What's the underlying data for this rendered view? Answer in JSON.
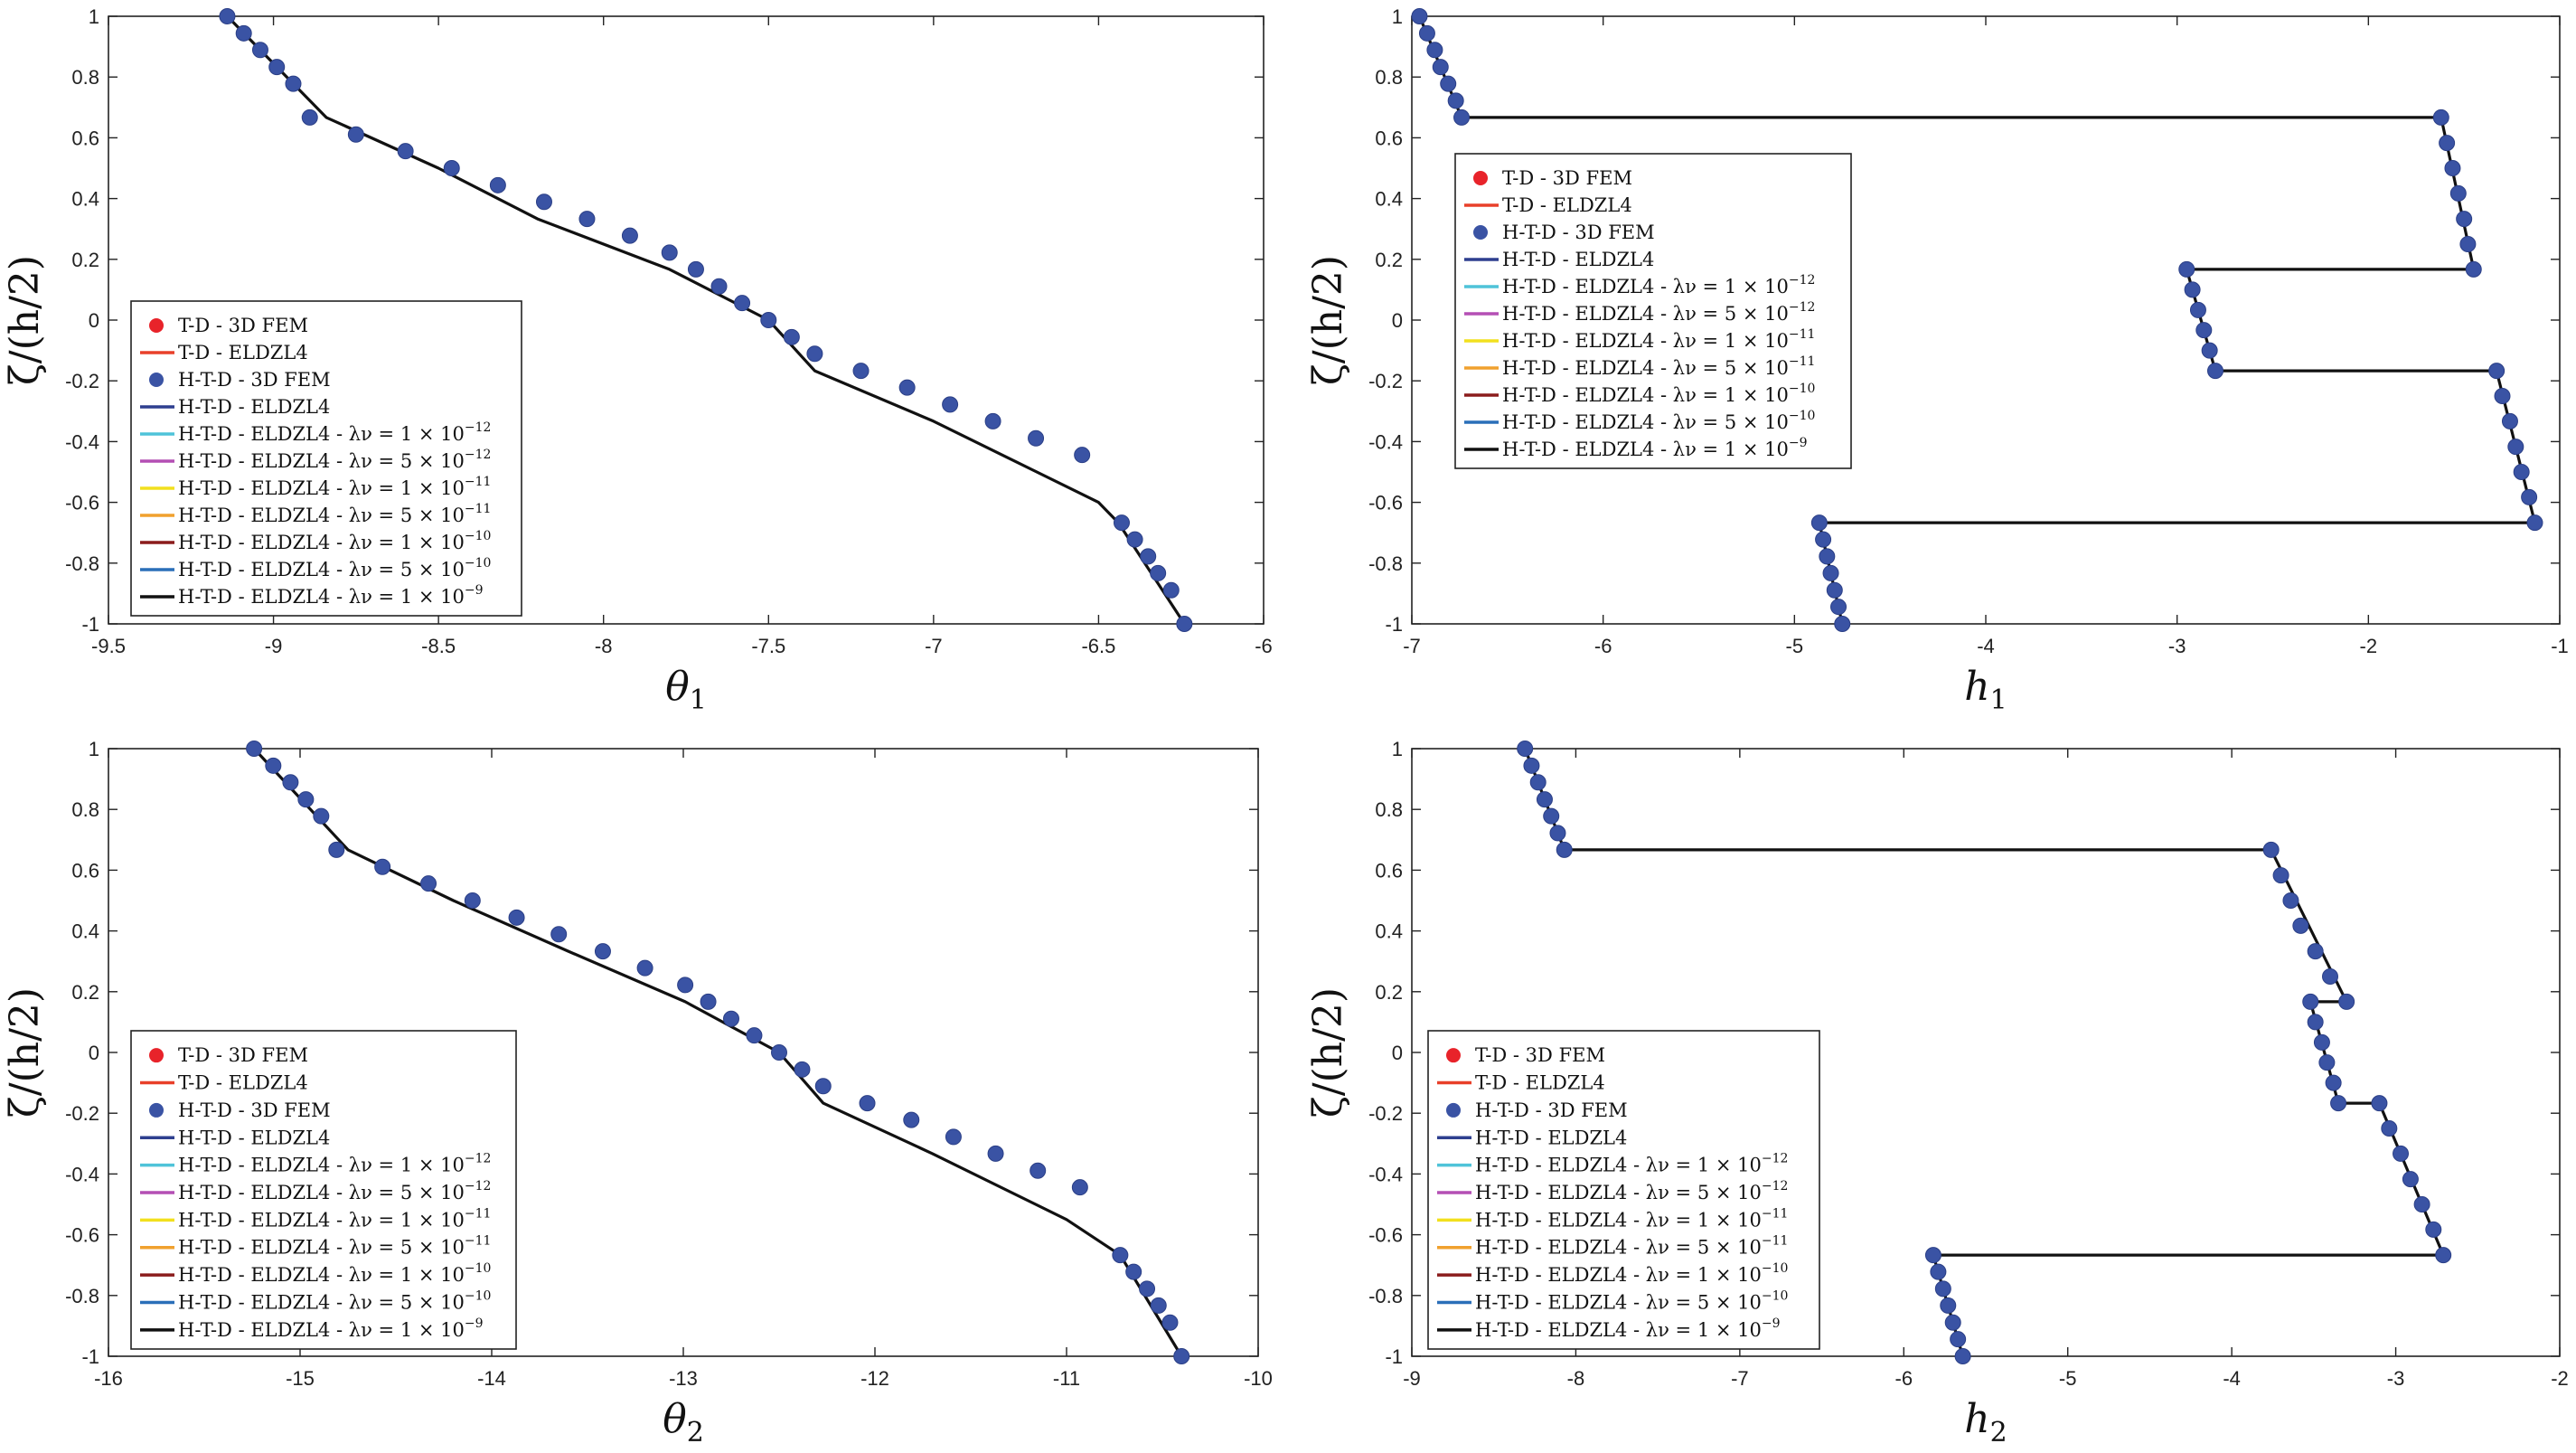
{
  "chart_data": [
    {
      "type": "line",
      "id": "theta1",
      "xlabel": "θ",
      "xlabel_sub": "1",
      "ylabel": "ζ/(h/2)",
      "xlim": [
        -9.5,
        -6
      ],
      "ylim": [
        -1,
        1
      ],
      "xticks": [
        -9.5,
        -9,
        -8.5,
        -8,
        -7.5,
        -7,
        -6.5,
        -6
      ],
      "xtick_labels": [
        "-9.5",
        "-9",
        "-8.5",
        "-8",
        "-7.5",
        "-7",
        "-6.5",
        "-6"
      ],
      "yticks": [
        -1,
        -0.8,
        -0.6,
        -0.4,
        -0.2,
        0,
        0.2,
        0.4,
        0.6,
        0.8,
        1
      ],
      "ytick_labels": [
        "-1",
        "-0.8",
        "-0.6",
        "-0.4",
        "-0.2",
        "0",
        "0.2",
        "0.4",
        "0.6",
        "0.8",
        "1"
      ],
      "legend_position": "bottom-left",
      "series": [
        {
          "name": "H-T-D - ELDZL4",
          "role": "line",
          "color": "#111111",
          "x": [
            -9.14,
            -8.84,
            -8.5,
            -8.2,
            -7.8,
            -7.5,
            -7.36,
            -7.0,
            -6.5,
            -6.44,
            -6.24
          ],
          "y": [
            1.0,
            0.667,
            0.5,
            0.333,
            0.167,
            0.0,
            -0.167,
            -0.333,
            -0.6,
            -0.667,
            -1.0
          ]
        },
        {
          "name": "H-T-D - 3D FEM",
          "role": "points",
          "color": "#3a53a4",
          "x": [
            -9.14,
            -9.09,
            -9.04,
            -8.99,
            -8.94,
            -8.89,
            -8.75,
            -8.6,
            -8.46,
            -8.32,
            -8.18,
            -8.05,
            -7.92,
            -7.8,
            -7.72,
            -7.65,
            -7.58,
            -7.5,
            -7.43,
            -7.36,
            -7.22,
            -7.08,
            -6.95,
            -6.82,
            -6.69,
            -6.55,
            -6.43,
            -6.39,
            -6.35,
            -6.32,
            -6.28,
            -6.24
          ],
          "y": [
            1.0,
            0.944,
            0.889,
            0.833,
            0.778,
            0.667,
            0.611,
            0.556,
            0.5,
            0.444,
            0.389,
            0.333,
            0.278,
            0.222,
            0.167,
            0.111,
            0.056,
            0.0,
            -0.056,
            -0.111,
            -0.167,
            -0.222,
            -0.278,
            -0.333,
            -0.389,
            -0.444,
            -0.667,
            -0.722,
            -0.778,
            -0.833,
            -0.889,
            -1.0
          ]
        }
      ]
    },
    {
      "type": "line",
      "id": "h1",
      "xlabel": "h",
      "xlabel_sub": "1",
      "ylabel": "ζ/(h/2)",
      "xlim": [
        -7,
        -1
      ],
      "ylim": [
        -1,
        1
      ],
      "xticks": [
        -7,
        -6,
        -5,
        -4,
        -3,
        -2,
        -1
      ],
      "xtick_labels": [
        "-7",
        "-6",
        "-5",
        "-4",
        "-3",
        "-2",
        "-1"
      ],
      "yticks": [
        -1,
        -0.8,
        -0.6,
        -0.4,
        -0.2,
        0,
        0.2,
        0.4,
        0.6,
        0.8,
        1
      ],
      "ytick_labels": [
        "-1",
        "-0.8",
        "-0.6",
        "-0.4",
        "-0.2",
        "0",
        "0.2",
        "0.4",
        "0.6",
        "0.8",
        "1"
      ],
      "legend_position": "top-left",
      "series": [
        {
          "name": "H-T-D - ELDZL4",
          "role": "line",
          "color": "#111111",
          "x": [
            -6.96,
            -6.74,
            -1.62,
            -1.45,
            -2.95,
            -2.8,
            -1.33,
            -1.13,
            -4.87,
            -4.75
          ],
          "y": [
            1.0,
            0.667,
            0.667,
            0.167,
            0.167,
            -0.167,
            -0.167,
            -0.667,
            -0.667,
            -1.0
          ]
        },
        {
          "name": "H-T-D - 3D FEM",
          "role": "points",
          "color": "#3a53a4",
          "x": [
            -6.96,
            -6.92,
            -6.88,
            -6.85,
            -6.81,
            -6.77,
            -6.74,
            -1.62,
            -1.59,
            -1.56,
            -1.53,
            -1.5,
            -1.48,
            -1.45,
            -2.95,
            -2.92,
            -2.89,
            -2.86,
            -2.83,
            -2.8,
            -1.33,
            -1.3,
            -1.26,
            -1.23,
            -1.2,
            -1.16,
            -1.13,
            -4.87,
            -4.85,
            -4.83,
            -4.81,
            -4.79,
            -4.77,
            -4.75
          ],
          "y": [
            1.0,
            0.944,
            0.889,
            0.833,
            0.778,
            0.722,
            0.667,
            0.667,
            0.583,
            0.5,
            0.417,
            0.333,
            0.25,
            0.167,
            0.167,
            0.1,
            0.033,
            -0.033,
            -0.1,
            -0.167,
            -0.167,
            -0.25,
            -0.333,
            -0.417,
            -0.5,
            -0.583,
            -0.667,
            -0.667,
            -0.722,
            -0.778,
            -0.833,
            -0.889,
            -0.944,
            -1.0
          ]
        }
      ]
    },
    {
      "type": "line",
      "id": "theta2",
      "xlabel": "θ",
      "xlabel_sub": "2",
      "ylabel": "ζ/(h/2)",
      "xlim": [
        -16,
        -10
      ],
      "ylim": [
        -1,
        1
      ],
      "xticks": [
        -16,
        -15,
        -14,
        -13,
        -12,
        -11,
        -10
      ],
      "xtick_labels": [
        "-16",
        "-15",
        "-14",
        "-13",
        "-12",
        "-11",
        "-10"
      ],
      "yticks": [
        -1,
        -0.8,
        -0.6,
        -0.4,
        -0.2,
        0,
        0.2,
        0.4,
        0.6,
        0.8,
        1
      ],
      "ytick_labels": [
        "-1",
        "-0.8",
        "-0.6",
        "-0.4",
        "-0.2",
        "0",
        "0.2",
        "0.4",
        "0.6",
        "0.8",
        "1"
      ],
      "legend_position": "bottom-left",
      "series": [
        {
          "name": "H-T-D - ELDZL4",
          "role": "line",
          "color": "#111111",
          "x": [
            -15.24,
            -14.75,
            -14.2,
            -13.6,
            -12.99,
            -12.5,
            -12.27,
            -11.7,
            -11.0,
            -10.72,
            -10.4
          ],
          "y": [
            1.0,
            0.667,
            0.5,
            0.333,
            0.167,
            0.0,
            -0.167,
            -0.333,
            -0.55,
            -0.667,
            -1.0
          ]
        },
        {
          "name": "H-T-D - 3D FEM",
          "role": "points",
          "color": "#3a53a4",
          "x": [
            -15.24,
            -15.14,
            -15.05,
            -14.97,
            -14.89,
            -14.81,
            -14.57,
            -14.33,
            -14.1,
            -13.87,
            -13.65,
            -13.42,
            -13.2,
            -12.99,
            -12.87,
            -12.75,
            -12.63,
            -12.5,
            -12.38,
            -12.27,
            -12.04,
            -11.81,
            -11.59,
            -11.37,
            -11.15,
            -10.93,
            -10.72,
            -10.65,
            -10.58,
            -10.52,
            -10.46,
            -10.4
          ],
          "y": [
            1.0,
            0.944,
            0.889,
            0.833,
            0.778,
            0.667,
            0.611,
            0.556,
            0.5,
            0.444,
            0.389,
            0.333,
            0.278,
            0.222,
            0.167,
            0.111,
            0.056,
            0.0,
            -0.056,
            -0.111,
            -0.167,
            -0.222,
            -0.278,
            -0.333,
            -0.389,
            -0.444,
            -0.667,
            -0.722,
            -0.778,
            -0.833,
            -0.889,
            -1.0
          ]
        }
      ]
    },
    {
      "type": "line",
      "id": "h2",
      "xlabel": "h",
      "xlabel_sub": "2",
      "ylabel": "ζ/(h/2)",
      "xlim": [
        -9,
        -2
      ],
      "ylim": [
        -1,
        1
      ],
      "xticks": [
        -9,
        -8,
        -7,
        -6,
        -5,
        -4,
        -3,
        -2
      ],
      "xtick_labels": [
        "-9",
        "-8",
        "-7",
        "-6",
        "-5",
        "-4",
        "-3",
        "-2"
      ],
      "yticks": [
        -1,
        -0.8,
        -0.6,
        -0.4,
        -0.2,
        0,
        0.2,
        0.4,
        0.6,
        0.8,
        1
      ],
      "ytick_labels": [
        "-1",
        "-0.8",
        "-0.6",
        "-0.4",
        "-0.2",
        "0",
        "0.2",
        "0.4",
        "0.6",
        "0.8",
        "1"
      ],
      "legend_position": "bottom-left",
      "series": [
        {
          "name": "H-T-D - ELDZL4",
          "role": "line",
          "color": "#111111",
          "x": [
            -8.31,
            -8.07,
            -3.76,
            -3.3,
            -3.52,
            -3.35,
            -3.1,
            -2.71,
            -5.82,
            -5.64
          ],
          "y": [
            1.0,
            0.667,
            0.667,
            0.167,
            0.167,
            -0.167,
            -0.167,
            -0.667,
            -0.667,
            -1.0
          ]
        },
        {
          "name": "H-T-D - 3D FEM",
          "role": "points",
          "color": "#3a53a4",
          "x": [
            -8.31,
            -8.27,
            -8.23,
            -8.19,
            -8.15,
            -8.11,
            -8.07,
            -3.76,
            -3.7,
            -3.64,
            -3.58,
            -3.49,
            -3.4,
            -3.3,
            -3.52,
            -3.49,
            -3.45,
            -3.42,
            -3.38,
            -3.35,
            -3.1,
            -3.04,
            -2.97,
            -2.91,
            -2.84,
            -2.77,
            -2.71,
            -5.82,
            -5.79,
            -5.76,
            -5.73,
            -5.7,
            -5.67,
            -5.64
          ],
          "y": [
            1.0,
            0.944,
            0.889,
            0.833,
            0.778,
            0.722,
            0.667,
            0.667,
            0.583,
            0.5,
            0.417,
            0.333,
            0.25,
            0.167,
            0.167,
            0.1,
            0.033,
            -0.033,
            -0.1,
            -0.167,
            -0.167,
            -0.25,
            -0.333,
            -0.417,
            -0.5,
            -0.583,
            -0.667,
            -0.667,
            -0.722,
            -0.778,
            -0.833,
            -0.889,
            -0.944,
            -1.0
          ]
        }
      ]
    }
  ],
  "legend": {
    "entries": [
      {
        "label": "T-D - 3D FEM",
        "suffix": "",
        "marker": "dot",
        "color": "#e8232a"
      },
      {
        "label": "T-D - ELDZL4",
        "suffix": "",
        "marker": "line",
        "color": "#e8402a"
      },
      {
        "label": "H-T-D - 3D FEM",
        "suffix": "",
        "marker": "dot",
        "color": "#3a53a4"
      },
      {
        "label": "H-T-D - ELDZL4",
        "suffix": "",
        "marker": "line",
        "color": "#2e3f8f"
      },
      {
        "label": "H-T-D - ELDZL4 - λν = 1 × 10",
        "suffix": "−12",
        "marker": "line",
        "color": "#4fc3d9"
      },
      {
        "label": "H-T-D - ELDZL4 - λν = 5 × 10",
        "suffix": "−12",
        "marker": "line",
        "color": "#b44fb4"
      },
      {
        "label": "H-T-D - ELDZL4 - λν = 1 × 10",
        "suffix": "−11",
        "marker": "line",
        "color": "#f2e01e"
      },
      {
        "label": "H-T-D - ELDZL4 - λν = 5 × 10",
        "suffix": "−11",
        "marker": "line",
        "color": "#f0a12e"
      },
      {
        "label": "H-T-D - ELDZL4 - λν = 1 × 10",
        "suffix": "−10",
        "marker": "line",
        "color": "#8b1c1c"
      },
      {
        "label": "H-T-D - ELDZL4 - λν = 5 × 10",
        "suffix": "−10",
        "marker": "line",
        "color": "#2a6fb8"
      },
      {
        "label": "H-T-D - ELDZL4 - λν = 1 × 10",
        "suffix": "−9",
        "marker": "line",
        "color": "#111111"
      }
    ]
  }
}
